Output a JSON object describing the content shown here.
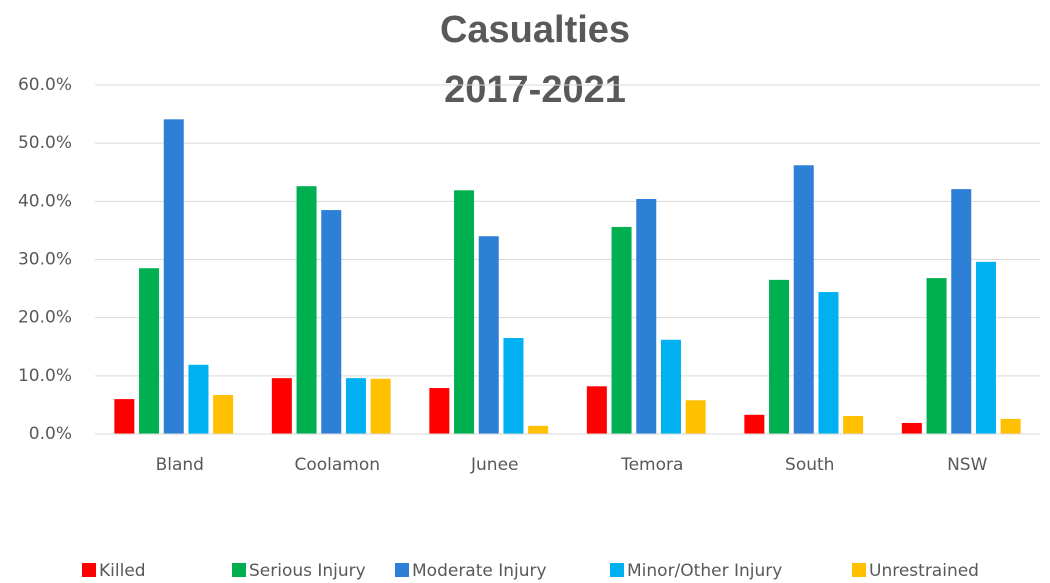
{
  "chart_data": {
    "type": "bar",
    "title": [
      "Casualties",
      "2017-2021"
    ],
    "categories": [
      "Bland",
      "Coolamon",
      "Junee",
      "Temora",
      "South",
      "NSW"
    ],
    "series": [
      {
        "name": "Killed",
        "color": "#ff0000",
        "values": [
          6.0,
          9.6,
          7.9,
          8.2,
          3.3,
          1.9
        ]
      },
      {
        "name": "Serious Injury",
        "color": "#00b050",
        "values": [
          28.5,
          42.6,
          41.9,
          35.6,
          26.5,
          26.8
        ]
      },
      {
        "name": "Moderate Injury",
        "color": "#2e7fd6",
        "values": [
          54.1,
          38.5,
          34.0,
          40.4,
          46.2,
          42.1
        ]
      },
      {
        "name": "Minor/Other Injury",
        "color": "#00b0f0",
        "values": [
          11.9,
          9.6,
          16.5,
          16.2,
          24.4,
          29.6
        ]
      },
      {
        "name": "Unrestrained",
        "color": "#ffc000",
        "values": [
          6.7,
          9.5,
          1.4,
          5.8,
          3.1,
          2.6
        ]
      }
    ],
    "ylim": [
      0,
      60
    ],
    "yticks": [
      {
        "value": 0,
        "label": "0.0%"
      },
      {
        "value": 10,
        "label": "10.0%"
      },
      {
        "value": 20,
        "label": "20.0%"
      },
      {
        "value": 30,
        "label": "30.0%"
      },
      {
        "value": 40,
        "label": "40.0%"
      },
      {
        "value": 50,
        "label": "50.0%"
      },
      {
        "value": 60,
        "label": "60.0%"
      }
    ],
    "grid": true,
    "legend": "bottom"
  }
}
